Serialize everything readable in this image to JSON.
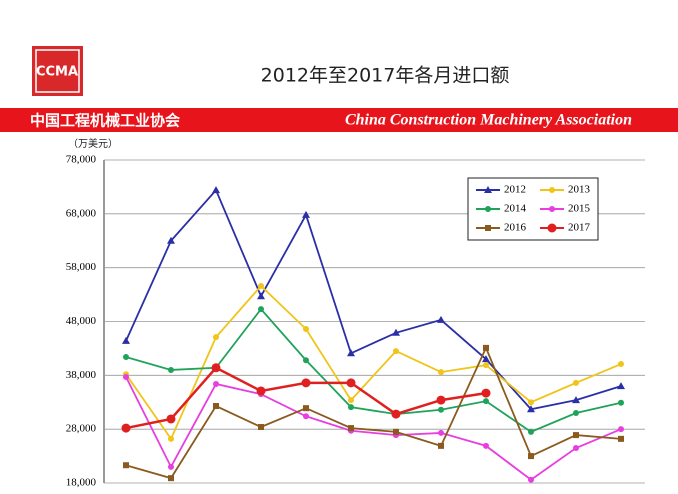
{
  "logo": "CCMA",
  "banner": {
    "left": "中国工程机械工业协会",
    "right": "China Construction Machinery Association"
  },
  "chart_data": {
    "type": "line",
    "title": "2012年至2017年各月进口额",
    "y_label": "（万美元）",
    "categories": [
      null,
      null,
      null,
      null,
      null,
      null,
      null,
      null,
      null,
      null,
      null,
      null
    ],
    "ylim": [
      18000,
      78000
    ],
    "yticks": [
      {
        "value": 18000,
        "label": "18,000"
      },
      {
        "value": 28000,
        "label": "28,000"
      },
      {
        "value": 38000,
        "label": "38,000"
      },
      {
        "value": 48000,
        "label": "48,000"
      },
      {
        "value": 58000,
        "label": "58,000"
      },
      {
        "value": 68000,
        "label": "68,000"
      },
      {
        "value": 78000,
        "label": "78,000"
      }
    ],
    "grid": true,
    "legend": "top-right",
    "series": [
      {
        "name": "2012",
        "color": "#2a2fa8",
        "marker": "triangle",
        "values": [
          44400,
          63000,
          72400,
          52700,
          67800,
          42100,
          45900,
          48300,
          41000,
          31700,
          33400,
          36000
        ]
      },
      {
        "name": "2013",
        "color": "#f0c419",
        "marker": "circle",
        "values": [
          38200,
          26200,
          45100,
          54600,
          46600,
          33400,
          42500,
          38600,
          39900,
          33000,
          36600,
          40100
        ]
      },
      {
        "name": "2014",
        "color": "#1fa35a",
        "marker": "circle",
        "values": [
          41400,
          39000,
          39400,
          50300,
          40800,
          32100,
          30800,
          31600,
          33200,
          27500,
          31000,
          32900
        ]
      },
      {
        "name": "2015",
        "color": "#e83ee0",
        "marker": "circle",
        "values": [
          37700,
          21000,
          36400,
          34500,
          30400,
          27700,
          26900,
          27300,
          24900,
          18600,
          24500,
          28000
        ]
      },
      {
        "name": "2016",
        "color": "#8b5a1e",
        "marker": "square",
        "values": [
          21300,
          18900,
          32300,
          28400,
          31900,
          28200,
          27500,
          24900,
          43100,
          23000,
          26900,
          26200
        ]
      },
      {
        "name": "2017",
        "color": "#e02020",
        "marker": "bigcircle",
        "values": [
          28200,
          29900,
          39400,
          35100,
          36600,
          36600,
          30800,
          33400,
          34700,
          null,
          null,
          null
        ]
      }
    ]
  }
}
